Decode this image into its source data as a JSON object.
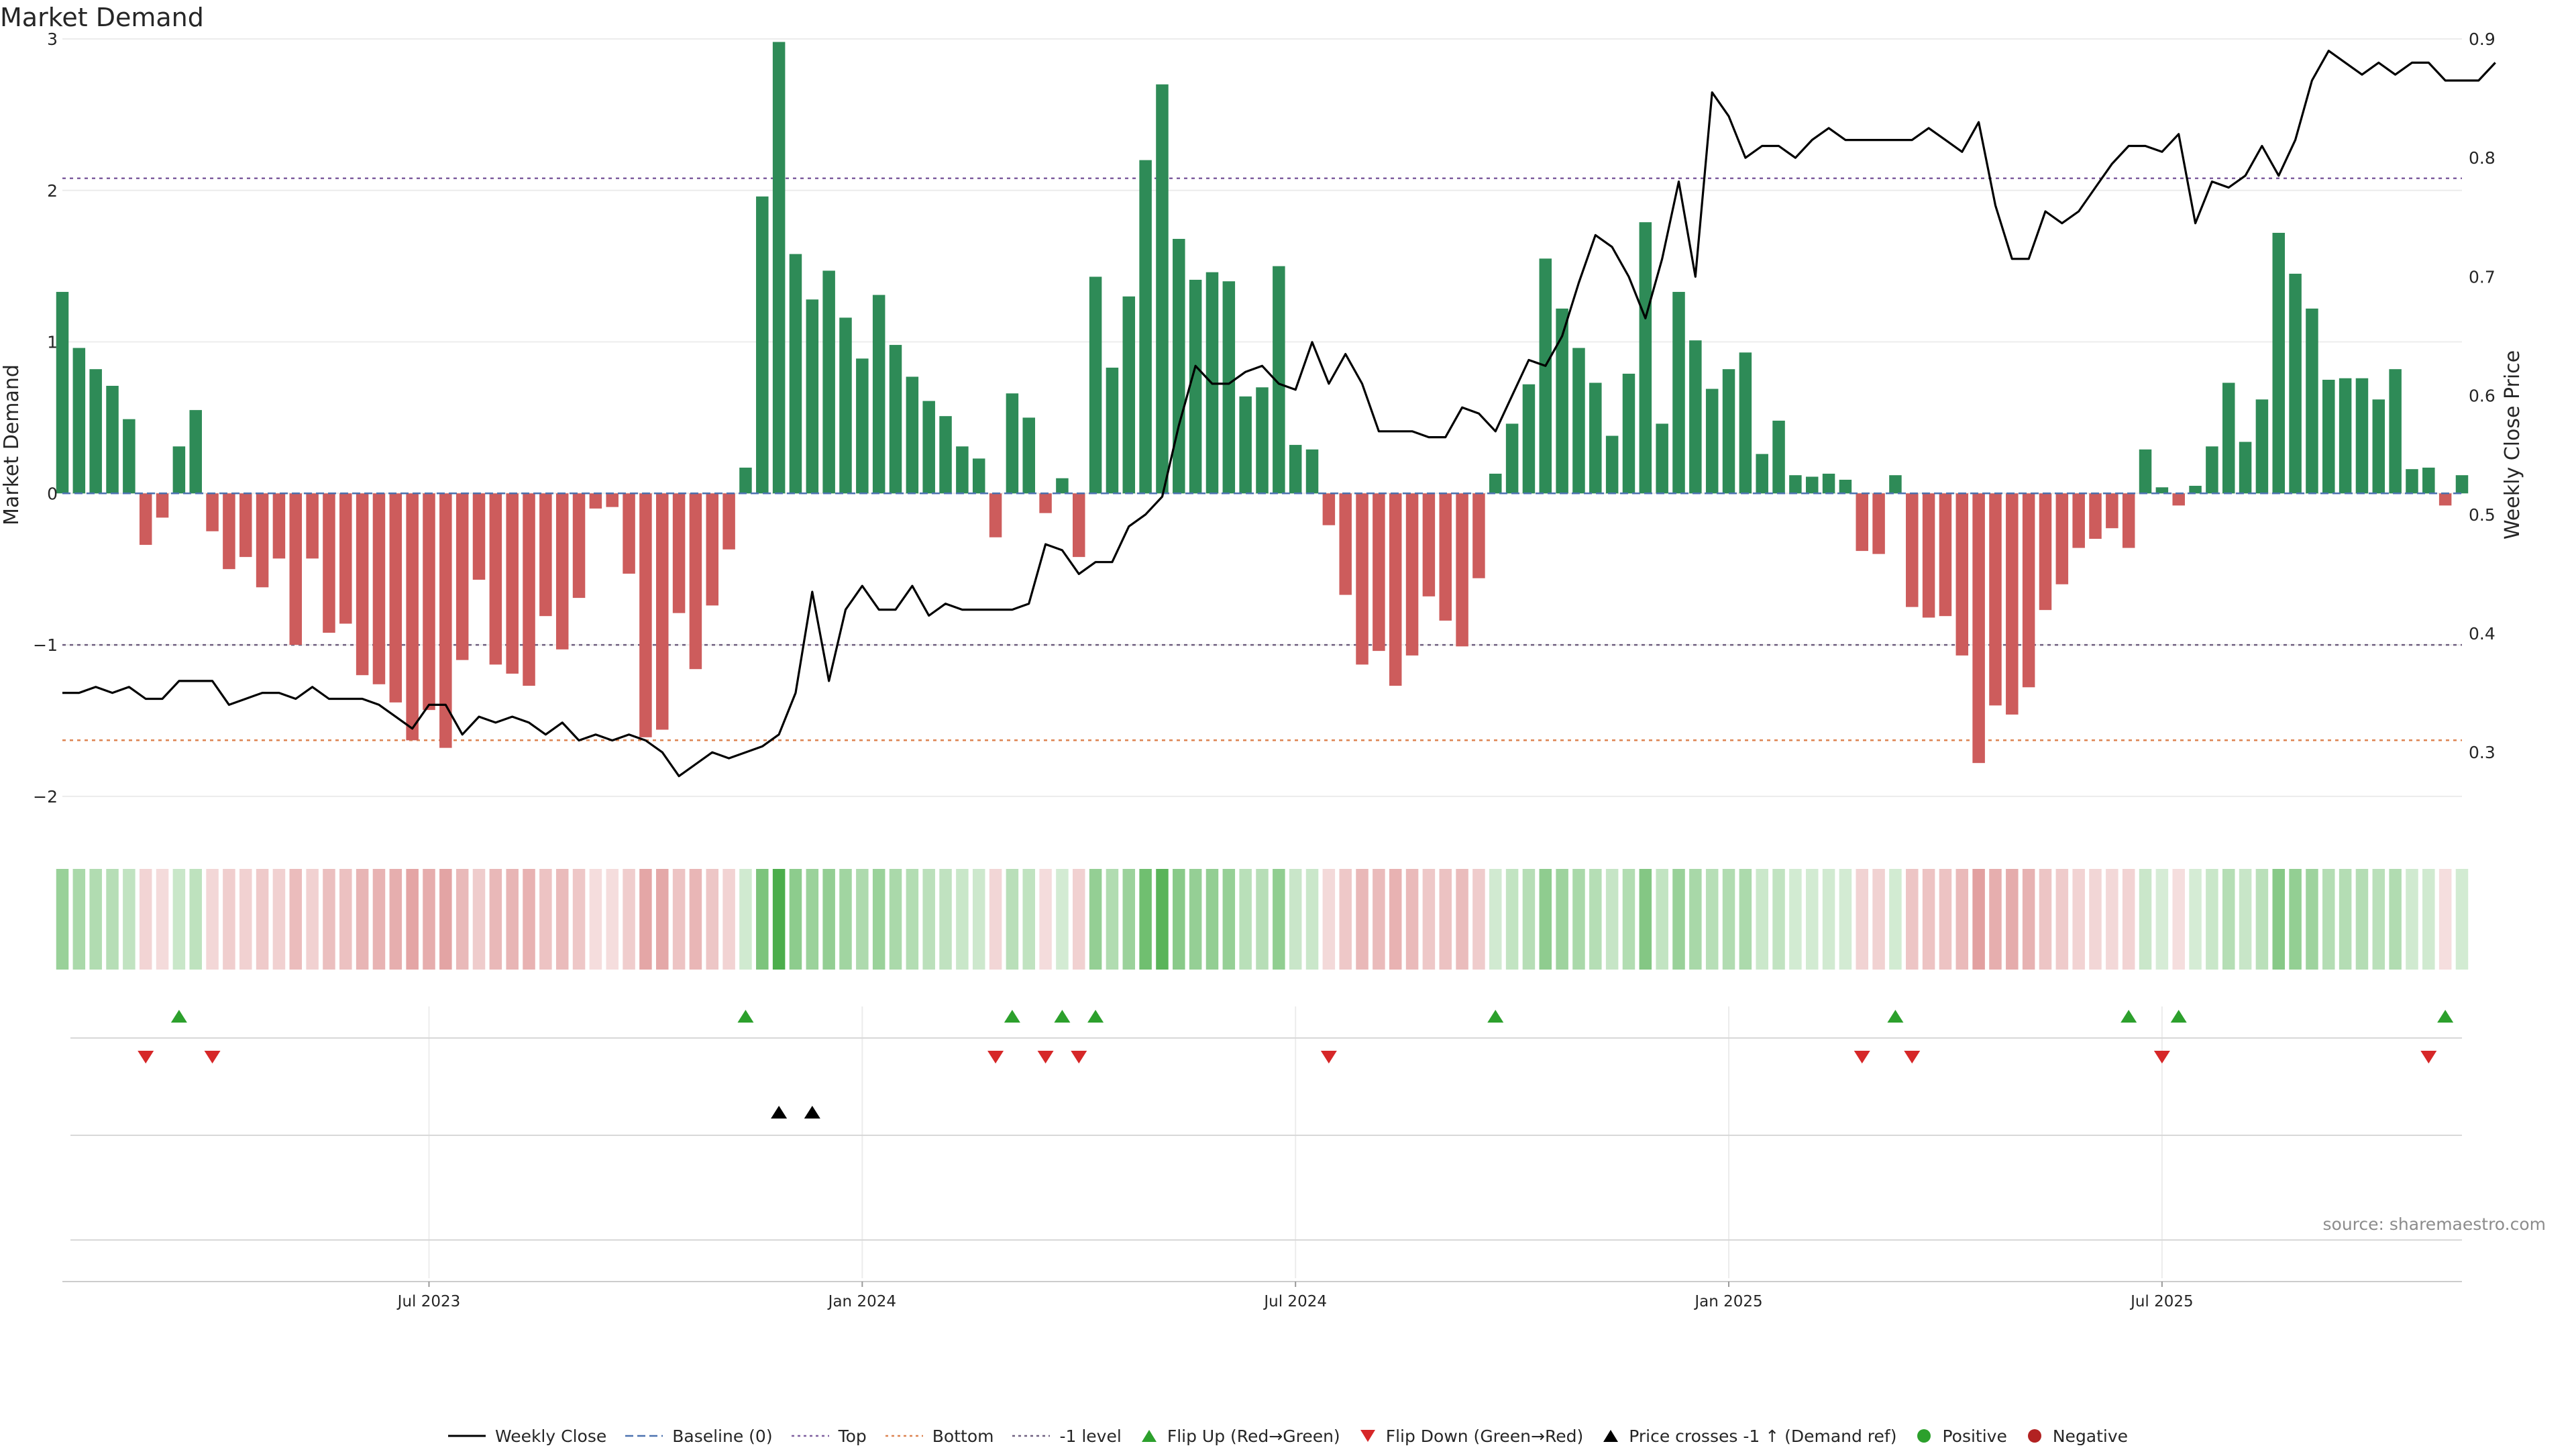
{
  "title": "Market Demand",
  "source": "source: sharemaestro.com",
  "colors": {
    "positive": "#2e8b57",
    "negative": "#cd5c5c",
    "price": "#000000",
    "baseline": "#4c72b0",
    "top": "#8060a0",
    "bottom": "#dd8452",
    "minus_one": "#706080",
    "flip_up": "#2ca02c",
    "flip_down": "#d62728",
    "grid": "#ececec",
    "pos_dot": "#2ca02c",
    "neg_dot": "#b22222"
  },
  "chart_data": {
    "type": "bar+line",
    "title": "Market Demand",
    "ylabel": "Market Demand",
    "y2label": "Weekly Close Price",
    "ylim": [
      -2.2,
      3.0
    ],
    "y2lim": [
      0.2375,
      0.9
    ],
    "yticks": [
      3,
      2,
      1,
      0,
      -1,
      -2
    ],
    "ytick_labels": [
      "3",
      "2",
      "1",
      "0",
      "−1",
      "−2"
    ],
    "y2ticks": [
      0.9,
      0.8,
      0.7,
      0.6,
      0.5,
      0.4,
      0.3
    ],
    "y2tick_labels": [
      "0.9",
      "0.8",
      "0.7",
      "0.6",
      "0.5",
      "0.4",
      "0.3"
    ],
    "x_tick_labels": [
      "Jul 2023",
      "Jan 2024",
      "Jul 2024",
      "Jan 2025",
      "Jul 2025"
    ],
    "x_tick_index": [
      22,
      48,
      74,
      100,
      126
    ],
    "levels": {
      "top": 2.08,
      "bottom": -1.63,
      "minus_one": -1.0,
      "baseline": 0
    },
    "demand": [
      1.33,
      0.96,
      0.82,
      0.71,
      0.49,
      -0.34,
      -0.16,
      0.31,
      0.55,
      -0.25,
      -0.5,
      -0.42,
      -0.62,
      -0.43,
      -1.0,
      -0.43,
      -0.92,
      -0.86,
      -1.2,
      -1.26,
      -1.38,
      -1.63,
      -1.43,
      -1.68,
      -1.1,
      -0.57,
      -1.13,
      -1.19,
      -1.27,
      -0.81,
      -1.03,
      -0.69,
      -0.1,
      -0.09,
      -0.53,
      -1.61,
      -1.56,
      -0.79,
      -1.16,
      -0.74,
      -0.37,
      0.17,
      1.96,
      2.98,
      1.58,
      1.28,
      1.47,
      1.16,
      0.89,
      1.31,
      0.98,
      0.77,
      0.61,
      0.51,
      0.31,
      0.23,
      -0.29,
      0.66,
      0.5,
      -0.13,
      0.1,
      -0.42,
      1.43,
      0.83,
      1.3,
      2.2,
      2.7,
      1.68,
      1.41,
      1.46,
      1.4,
      0.64,
      0.7,
      1.5,
      0.32,
      0.29,
      -0.21,
      -0.67,
      -1.13,
      -1.04,
      -1.27,
      -1.07,
      -0.68,
      -0.84,
      -1.01,
      -0.56,
      0.13,
      0.46,
      0.72,
      1.55,
      1.22,
      0.96,
      0.73,
      0.38,
      0.79,
      1.79,
      0.46,
      1.33,
      1.01,
      0.69,
      0.82,
      0.93,
      0.26,
      0.48,
      0.12,
      0.11,
      0.13,
      0.09,
      -0.38,
      -0.4,
      0.12,
      -0.75,
      -0.82,
      -0.81,
      -1.07,
      -1.78,
      -1.4,
      -1.46,
      -1.28,
      -0.77,
      -0.6,
      -0.36,
      -0.3,
      -0.23,
      -0.36,
      0.29,
      0.04,
      -0.08,
      0.05,
      0.31,
      0.73,
      0.34,
      0.62,
      1.72,
      1.45,
      1.22,
      0.75,
      0.76,
      0.76,
      0.62,
      0.82,
      0.16,
      0.17,
      -0.08,
      0.12
    ],
    "weekly_close": [
      0.35,
      0.35,
      0.355,
      0.35,
      0.355,
      0.345,
      0.345,
      0.36,
      0.36,
      0.36,
      0.34,
      0.345,
      0.35,
      0.35,
      0.345,
      0.355,
      0.345,
      0.345,
      0.345,
      0.34,
      0.33,
      0.32,
      0.34,
      0.34,
      0.315,
      0.33,
      0.325,
      0.33,
      0.325,
      0.315,
      0.325,
      0.31,
      0.315,
      0.31,
      0.315,
      0.31,
      0.3,
      0.28,
      0.29,
      0.3,
      0.295,
      0.3,
      0.305,
      0.315,
      0.35,
      0.435,
      0.36,
      0.42,
      0.44,
      0.42,
      0.42,
      0.44,
      0.415,
      0.425,
      0.42,
      0.42,
      0.42,
      0.42,
      0.425,
      0.475,
      0.47,
      0.45,
      0.46,
      0.46,
      0.49,
      0.5,
      0.515,
      0.575,
      0.625,
      0.61,
      0.61,
      0.62,
      0.625,
      0.61,
      0.605,
      0.645,
      0.61,
      0.635,
      0.61,
      0.57,
      0.57,
      0.57,
      0.565,
      0.565,
      0.59,
      0.585,
      0.57,
      0.6,
      0.63,
      0.625,
      0.65,
      0.695,
      0.735,
      0.725,
      0.7,
      0.665,
      0.715,
      0.78,
      0.7,
      0.855,
      0.835,
      0.8,
      0.81,
      0.81,
      0.8,
      0.815,
      0.825,
      0.815,
      0.815,
      0.815,
      0.815,
      0.815,
      0.825,
      0.815,
      0.805,
      0.83,
      0.76,
      0.715,
      0.715,
      0.755,
      0.745,
      0.755,
      0.775,
      0.795,
      0.81,
      0.81,
      0.805,
      0.82,
      0.745,
      0.78,
      0.775,
      0.785,
      0.81,
      0.785,
      0.815,
      0.865,
      0.89,
      0.88,
      0.87,
      0.88,
      0.87,
      0.88,
      0.88,
      0.865,
      0.865,
      0.865,
      0.88
    ],
    "flip_up_index": [
      7,
      41,
      57,
      60,
      62,
      86,
      110,
      124,
      127,
      143
    ],
    "flip_down_index": [
      5,
      9,
      56,
      59,
      61,
      76,
      108,
      111,
      126,
      142
    ],
    "price_cross_index": [
      43,
      45
    ],
    "markers": {
      "positive_index": [],
      "negative_index": []
    }
  },
  "legend": [
    {
      "label": "Weekly Close",
      "marker": "line-solid",
      "color": "#000000"
    },
    {
      "label": "Baseline (0)",
      "marker": "line-dash",
      "color": "#4c72b0"
    },
    {
      "label": "Top",
      "marker": "line-dot",
      "color": "#8060a0"
    },
    {
      "label": "Bottom",
      "marker": "line-dot",
      "color": "#dd8452"
    },
    {
      "label": "-1 level",
      "marker": "line-dot",
      "color": "#706080"
    },
    {
      "label": "Flip Up (Red→Green)",
      "marker": "triangle-up",
      "color": "#2ca02c"
    },
    {
      "label": "Flip Down (Green→Red)",
      "marker": "triangle-down",
      "color": "#d62728"
    },
    {
      "label": "Price crosses -1 ↑ (Demand ref)",
      "marker": "triangle-up",
      "color": "#000000"
    },
    {
      "label": "Positive",
      "marker": "circle",
      "color": "#2ca02c"
    },
    {
      "label": "Negative",
      "marker": "circle",
      "color": "#b22222"
    }
  ]
}
